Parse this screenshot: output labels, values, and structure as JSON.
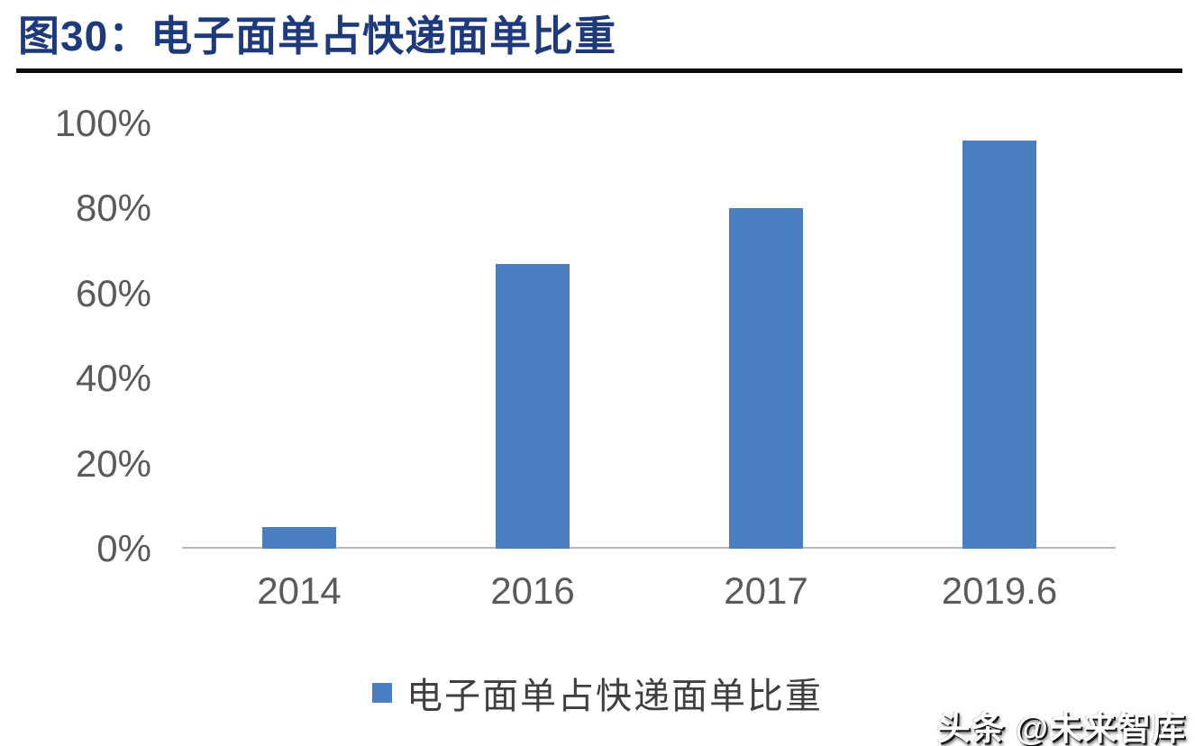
{
  "header": {
    "title": "图30：电子面单占快递面单比重",
    "title_color": "#1E3A7A",
    "rule_color": "#0B0B0B"
  },
  "chart_data": {
    "type": "bar",
    "title": "图30：电子面单占快递面单比重",
    "categories": [
      "2014",
      "2016",
      "2017",
      "2019.6"
    ],
    "values": [
      5,
      67,
      80,
      96
    ],
    "unit": "%",
    "ylim": [
      0,
      100
    ],
    "yticks": [
      0,
      20,
      40,
      60,
      80,
      100
    ],
    "ytick_labels": [
      "0%",
      "20%",
      "40%",
      "60%",
      "80%",
      "100%"
    ],
    "grid": false,
    "legend_position": "bottom",
    "bar_color": "#4A7EC0"
  },
  "axis": {
    "label_color": "#5A5A5A",
    "line_color": "#B9B9B9"
  },
  "legend": {
    "label": "电子面单占快递面单比重",
    "swatch_color": "#4A7EC0",
    "text_color": "#3F3F3F"
  },
  "watermark": {
    "text": "头条 @未来智库"
  }
}
